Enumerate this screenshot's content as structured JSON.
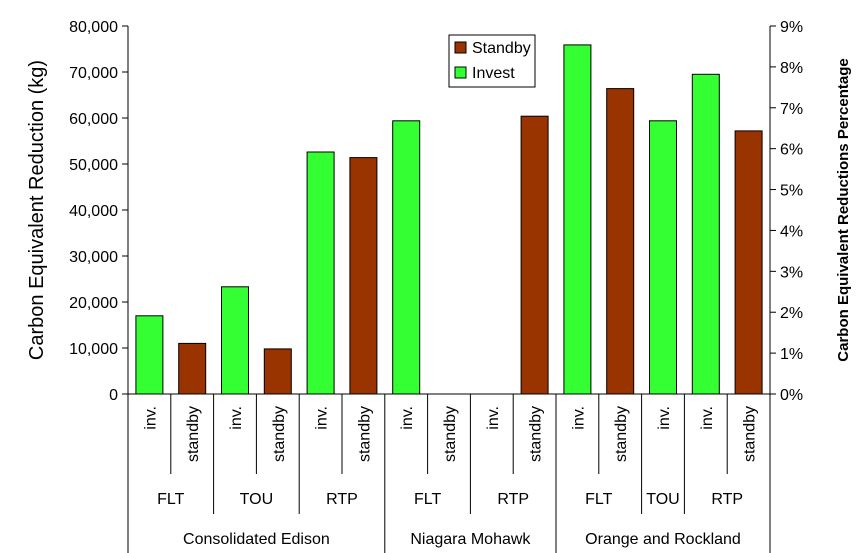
{
  "chart_data": {
    "type": "bar",
    "ylabel": "Carbon Equivalent Reduction (kg)",
    "y2label": "Carbon Equivalent Reductions Percentage",
    "ylim": [
      0,
      80000
    ],
    "y2lim": [
      0,
      9
    ],
    "y_ticks": [
      "0",
      "10,000",
      "20,000",
      "30,000",
      "40,000",
      "50,000",
      "60,000",
      "70,000",
      "80,000"
    ],
    "y2_ticks": [
      "0%",
      "1%",
      "2%",
      "3%",
      "4%",
      "5%",
      "6%",
      "7%",
      "8%",
      "9%"
    ],
    "legend": {
      "position": "top-center",
      "entries": [
        {
          "name": "Standby",
          "color": "#993300"
        },
        {
          "name": "Invest",
          "color": "#33ff33"
        }
      ]
    },
    "bars": [
      {
        "label": "inv.",
        "series": "Invest",
        "value": 17000
      },
      {
        "label": "standby",
        "series": "Standby",
        "value": 11000
      },
      {
        "label": "inv.",
        "series": "Invest",
        "value": 23300
      },
      {
        "label": "standby",
        "series": "Standby",
        "value": 9800
      },
      {
        "label": "inv.",
        "series": "Invest",
        "value": 52600
      },
      {
        "label": "standby",
        "series": "Standby",
        "value": 51400
      },
      {
        "label": "inv.",
        "series": "Invest",
        "value": 59400
      },
      {
        "label": "standby",
        "series": "Standby",
        "value": 0
      },
      {
        "label": "inv.",
        "series": "Invest",
        "value": 0
      },
      {
        "label": "standby",
        "series": "Standby",
        "value": 60400
      },
      {
        "label": "inv.",
        "series": "Invest",
        "value": 75900
      },
      {
        "label": "standby",
        "series": "Standby",
        "value": 66400
      },
      {
        "label": "inv.",
        "series": "Invest",
        "value": 59400
      },
      {
        "label": "inv.",
        "series": "Invest",
        "value": 69500
      },
      {
        "label": "standby",
        "series": "Standby",
        "value": 57200
      }
    ],
    "tariff_groups": [
      {
        "label": "FLT",
        "span": 2
      },
      {
        "label": "TOU",
        "span": 2
      },
      {
        "label": "RTP",
        "span": 2
      },
      {
        "label": "FLT",
        "span": 2
      },
      {
        "label": "RTP",
        "span": 2
      },
      {
        "label": "FLT",
        "span": 2
      },
      {
        "label": "TOU",
        "span": 1
      },
      {
        "label": "RTP",
        "span": 2
      }
    ],
    "utility_groups": [
      {
        "label": "Consolidated Edison",
        "span": 6
      },
      {
        "label": "Niagara Mohawk",
        "span": 4
      },
      {
        "label": "Orange and Rockland",
        "span": 5
      }
    ],
    "colors": {
      "Invest": "#33ff33",
      "Standby": "#993300"
    }
  }
}
